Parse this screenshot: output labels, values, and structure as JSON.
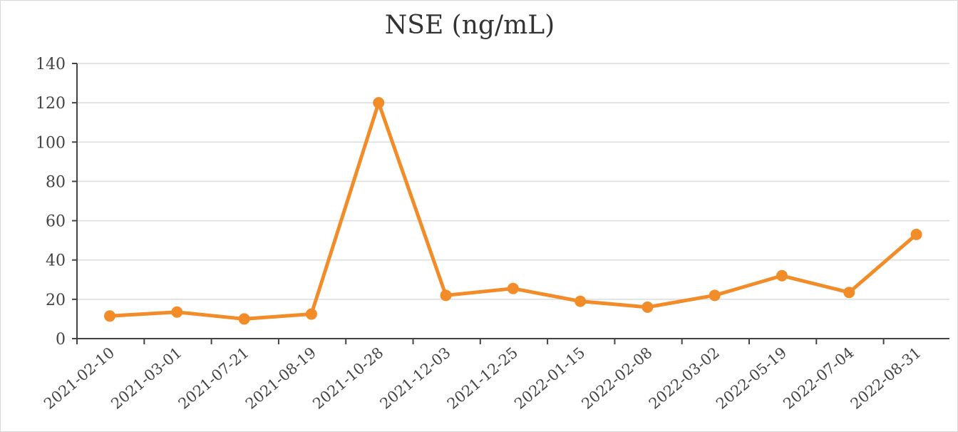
{
  "chart_data": {
    "type": "line",
    "title": "NSE (ng/mL)",
    "xlabel": "",
    "ylabel": "",
    "ylim": [
      0,
      140
    ],
    "yticks": [
      0,
      20,
      40,
      60,
      80,
      100,
      120,
      140
    ],
    "grid": true,
    "legend": "none",
    "line_color": "#f28c28",
    "categories": [
      "2021-02-10",
      "2021-03-01",
      "2021-07-21",
      "2021-08-19",
      "2021-10-28",
      "2021-12-03",
      "2021-12-25",
      "2022-01-15",
      "2022-02-08",
      "2022-03-02",
      "2022-05-19",
      "2022-07-04",
      "2022-08-31"
    ],
    "series": [
      {
        "values": [
          11.5,
          13.5,
          10,
          12.5,
          120,
          22,
          25.5,
          19,
          16,
          22,
          32,
          23.5,
          53
        ]
      }
    ]
  }
}
